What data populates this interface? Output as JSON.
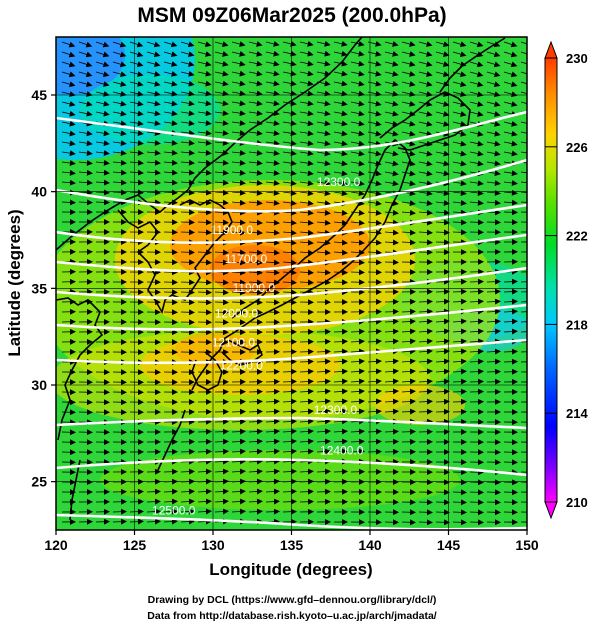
{
  "title": "MSM 09Z06Mar2025 (200.0hPa)",
  "footer": {
    "line1": "Drawing by DCL (https://www.gfd–dennou.org/library/dcl/)",
    "line2": "Data from http://database.rish.kyoto–u.ac.jp/arch/jmadata/"
  },
  "map": {
    "xlabel": "Longitude (degrees)",
    "ylabel": "Latitude  (degrees)",
    "xlim": [
      120,
      150
    ],
    "ylim": [
      22.5,
      48
    ],
    "xticks": [
      "120",
      "125",
      "130",
      "135",
      "140",
      "145",
      "150"
    ],
    "yticks": [
      "25",
      "30",
      "35",
      "40",
      "45"
    ],
    "xtick_values": [
      120,
      125,
      130,
      135,
      140,
      145,
      150
    ],
    "ytick_values": [
      25,
      30,
      35,
      40,
      45
    ]
  },
  "colorbar": {
    "min": 210,
    "max": 230,
    "tick_labels": [
      "230",
      "226",
      "222",
      "218",
      "214",
      "210"
    ],
    "tick_values": [
      230,
      226,
      222,
      218,
      214,
      210
    ],
    "colors": [
      "#ff00ff",
      "#7a00ff",
      "#0000ff",
      "#0066ff",
      "#00c8ff",
      "#00e0b0",
      "#00dc28",
      "#55e000",
      "#b4e600",
      "#ffd200",
      "#ff8c00",
      "#ff3c00"
    ]
  },
  "contours": [
    {
      "label": "12300.0",
      "lon": 138,
      "lat": 40.3
    },
    {
      "label": "11900.0",
      "lon": 131.2,
      "lat": 37.8
    },
    {
      "label": "11700.0",
      "lon": 132.1,
      "lat": 36.3
    },
    {
      "label": "11900.0",
      "lon": 132.6,
      "lat": 34.8
    },
    {
      "label": "12000.0",
      "lon": 131.5,
      "lat": 33.5
    },
    {
      "label": "12100.0",
      "lon": 131.3,
      "lat": 32.0
    },
    {
      "label": "12200.0",
      "lon": 131.8,
      "lat": 30.8
    },
    {
      "label": "12300.0",
      "lon": 137.8,
      "lat": 28.5
    },
    {
      "label": "12400.0",
      "lon": 138.2,
      "lat": 26.4
    },
    {
      "label": "12500.0",
      "lon": 127.5,
      "lat": 23.3
    }
  ]
}
